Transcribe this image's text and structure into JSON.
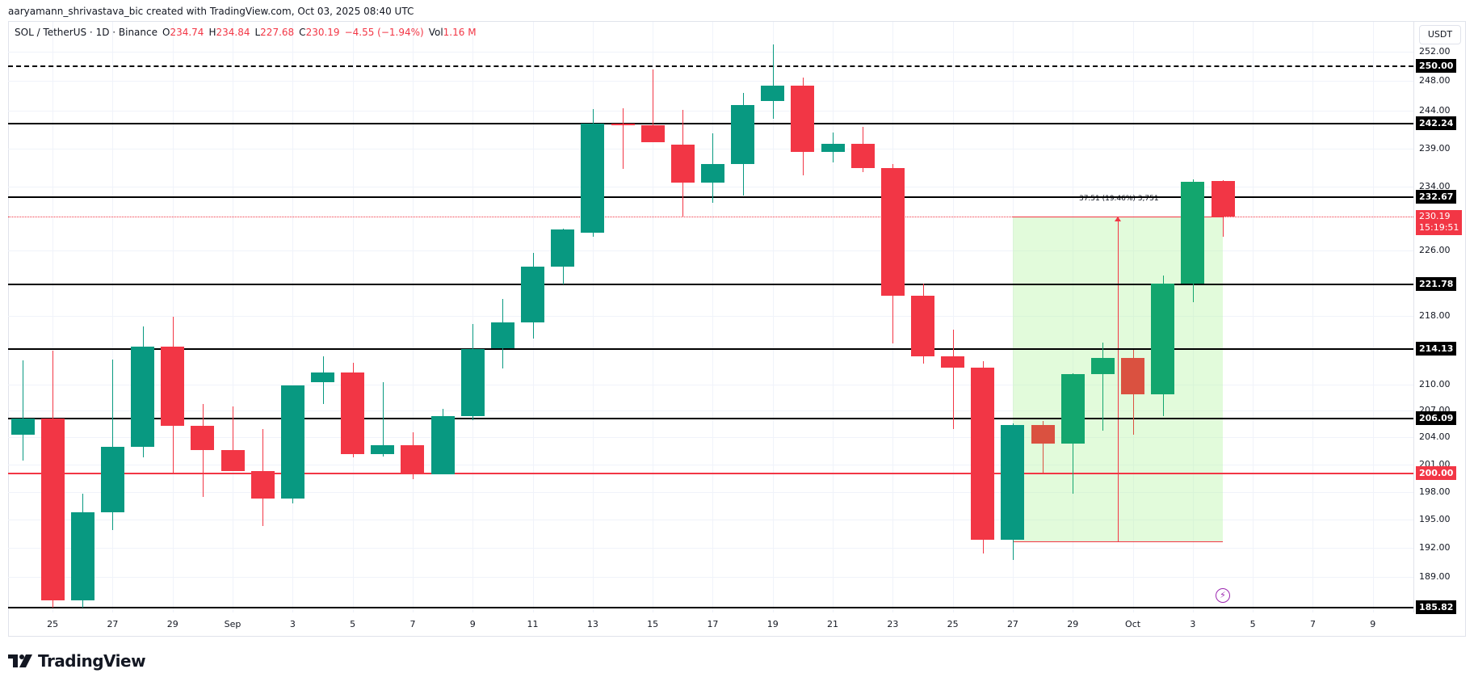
{
  "caption": "aaryamann_shrivastava_bic created with TradingView.com, Oct 03, 2025 08:40 UTC",
  "legend": {
    "symbol": "SOL / TetherUS · 1D · Binance",
    "o_label": "O",
    "o_value": "234.74",
    "h_label": "H",
    "h_value": "234.84",
    "l_label": "L",
    "l_value": "227.68",
    "c_label": "C",
    "c_value": "230.19",
    "change": "−4.55 (−1.94%)",
    "vol_label": "Vol",
    "vol_value": "1.16 M"
  },
  "currency": "USDT",
  "logo_text": "TradingView",
  "colors": {
    "up": "#089981",
    "down": "#f23645",
    "up_light": "#13a66e",
    "down_light": "#da5140",
    "level_line": "#000000",
    "support_line": "#f23645",
    "measure_fill": "#bbf5aa",
    "current_price": "#f23645",
    "bolt": "#9c27b0"
  },
  "current_price": {
    "value": "230.19",
    "countdown": "15:19:51"
  },
  "measure_label": "37.51 (19.46%) 3,751",
  "chart_data": {
    "type": "candlestick",
    "title": "SOL / TetherUS · 1D · Binance",
    "xlabel": "",
    "ylabel": "USDT",
    "ylim": [
      185.5,
      253.5
    ],
    "scale": "log",
    "x_ticks": [
      "25",
      "27",
      "29",
      "Sep",
      "3",
      "5",
      "7",
      "9",
      "11",
      "13",
      "15",
      "17",
      "19",
      "21",
      "23",
      "25",
      "27",
      "29",
      "Oct",
      "3",
      "5",
      "7",
      "9"
    ],
    "y_ticks": [
      "252.00",
      "248.00",
      "244.00",
      "239.00",
      "234.00",
      "226.00",
      "218.00",
      "210.00",
      "207.00",
      "204.00",
      "201.00",
      "198.00",
      "195.00",
      "192.00",
      "189.00"
    ],
    "horizontal_levels": [
      {
        "price": "250.00",
        "style": "dashed",
        "color": "#000000"
      },
      {
        "price": "242.24",
        "style": "solid",
        "color": "#000000"
      },
      {
        "price": "232.67",
        "style": "solid",
        "color": "#000000"
      },
      {
        "price": "221.78",
        "style": "solid",
        "color": "#000000"
      },
      {
        "price": "214.13",
        "style": "solid",
        "color": "#000000"
      },
      {
        "price": "206.09",
        "style": "solid",
        "color": "#000000"
      },
      {
        "price": "200.00",
        "style": "solid",
        "color": "#f23645"
      },
      {
        "price": "185.82",
        "style": "solid",
        "color": "#000000"
      }
    ],
    "candles": [
      {
        "date": "Aug 24",
        "o": 204.3,
        "h": 212.8,
        "l": 201.4,
        "c": 206.1
      },
      {
        "date": "Aug 25",
        "o": 206.1,
        "h": 213.9,
        "l": 185.8,
        "c": 186.6
      },
      {
        "date": "Aug 26",
        "o": 186.6,
        "h": 197.8,
        "l": 185.8,
        "c": 195.8
      },
      {
        "date": "Aug 27",
        "o": 195.8,
        "h": 212.9,
        "l": 193.9,
        "c": 202.9
      },
      {
        "date": "Aug 28",
        "o": 202.9,
        "h": 216.8,
        "l": 201.8,
        "c": 214.4
      },
      {
        "date": "Aug 29",
        "o": 214.4,
        "h": 217.9,
        "l": 200.1,
        "c": 205.3
      },
      {
        "date": "Aug 30",
        "o": 205.3,
        "h": 207.8,
        "l": 197.4,
        "c": 202.6
      },
      {
        "date": "Aug 31",
        "o": 202.6,
        "h": 207.5,
        "l": 200.3,
        "c": 200.3
      },
      {
        "date": "Sep 1",
        "o": 200.3,
        "h": 204.9,
        "l": 194.3,
        "c": 197.3
      },
      {
        "date": "Sep 2",
        "o": 197.3,
        "h": 209.9,
        "l": 196.7,
        "c": 209.9
      },
      {
        "date": "Sep 3",
        "o": 210.3,
        "h": 213.3,
        "l": 207.8,
        "c": 211.4
      },
      {
        "date": "Sep 4",
        "o": 211.4,
        "h": 212.5,
        "l": 201.8,
        "c": 202.1
      },
      {
        "date": "Sep 5",
        "o": 202.1,
        "h": 210.3,
        "l": 201.9,
        "c": 203.1
      },
      {
        "date": "Sep 6",
        "o": 203.1,
        "h": 204.6,
        "l": 199.4,
        "c": 199.9
      },
      {
        "date": "Sep 7",
        "o": 199.9,
        "h": 207.2,
        "l": 199.9,
        "c": 206.4
      },
      {
        "date": "Sep 8",
        "o": 206.4,
        "h": 217.1,
        "l": 205.9,
        "c": 214.1
      },
      {
        "date": "Sep 9",
        "o": 214.2,
        "h": 220.1,
        "l": 211.8,
        "c": 217.3
      },
      {
        "date": "Sep 10",
        "o": 217.3,
        "h": 225.7,
        "l": 215.3,
        "c": 224.0
      },
      {
        "date": "Sep 11",
        "o": 224.0,
        "h": 228.7,
        "l": 221.8,
        "c": 228.6
      },
      {
        "date": "Sep 12",
        "o": 228.2,
        "h": 244.2,
        "l": 227.7,
        "c": 242.3
      },
      {
        "date": "Sep 13",
        "o": 242.3,
        "h": 244.3,
        "l": 236.3,
        "c": 242.0
      },
      {
        "date": "Sep 14",
        "o": 242.1,
        "h": 249.6,
        "l": 239.8,
        "c": 239.8
      },
      {
        "date": "Sep 15",
        "o": 239.5,
        "h": 244.1,
        "l": 230.1,
        "c": 234.6
      },
      {
        "date": "Sep 16",
        "o": 234.6,
        "h": 241.0,
        "l": 232.0,
        "c": 237.0
      },
      {
        "date": "Sep 17",
        "o": 237.0,
        "h": 246.4,
        "l": 232.9,
        "c": 244.7
      },
      {
        "date": "Sep 18",
        "o": 245.3,
        "h": 253.0,
        "l": 242.9,
        "c": 247.4
      },
      {
        "date": "Sep 19",
        "o": 247.4,
        "h": 248.4,
        "l": 235.5,
        "c": 238.5
      },
      {
        "date": "Sep 20",
        "o": 238.5,
        "h": 241.1,
        "l": 237.2,
        "c": 239.6
      },
      {
        "date": "Sep 21",
        "o": 239.6,
        "h": 241.8,
        "l": 235.9,
        "c": 236.4
      },
      {
        "date": "Sep 22",
        "o": 236.4,
        "h": 237.0,
        "l": 214.8,
        "c": 220.5
      },
      {
        "date": "Sep 23",
        "o": 220.5,
        "h": 221.9,
        "l": 212.4,
        "c": 213.3
      },
      {
        "date": "Sep 24",
        "o": 213.3,
        "h": 216.4,
        "l": 204.9,
        "c": 211.9
      },
      {
        "date": "Sep 25",
        "o": 211.9,
        "h": 212.7,
        "l": 191.4,
        "c": 192.9
      },
      {
        "date": "Sep 26",
        "o": 192.9,
        "h": 205.6,
        "l": 190.7,
        "c": 205.4
      },
      {
        "date": "Sep 27",
        "o": 205.4,
        "h": 205.8,
        "l": 200.1,
        "c": 203.3
      },
      {
        "date": "Sep 28",
        "o": 203.3,
        "h": 211.3,
        "l": 197.8,
        "c": 211.2
      },
      {
        "date": "Sep 29",
        "o": 211.2,
        "h": 214.9,
        "l": 204.7,
        "c": 213.1
      },
      {
        "date": "Sep 30",
        "o": 213.1,
        "h": 214.0,
        "l": 204.3,
        "c": 208.9
      },
      {
        "date": "Oct 1",
        "o": 208.9,
        "h": 222.9,
        "l": 206.4,
        "c": 221.9
      },
      {
        "date": "Oct 2",
        "o": 221.9,
        "h": 235.0,
        "l": 219.7,
        "c": 234.7
      },
      {
        "date": "Oct 3",
        "o": 234.74,
        "h": 234.84,
        "l": 227.68,
        "c": 230.19
      }
    ],
    "annotations": [
      {
        "type": "price_range_measure",
        "from_date": "Sep 26",
        "to_date": "Oct 3",
        "from_price": 192.68,
        "to_price": 230.19,
        "label": "37.51 (19.46%) 3,751"
      }
    ]
  }
}
